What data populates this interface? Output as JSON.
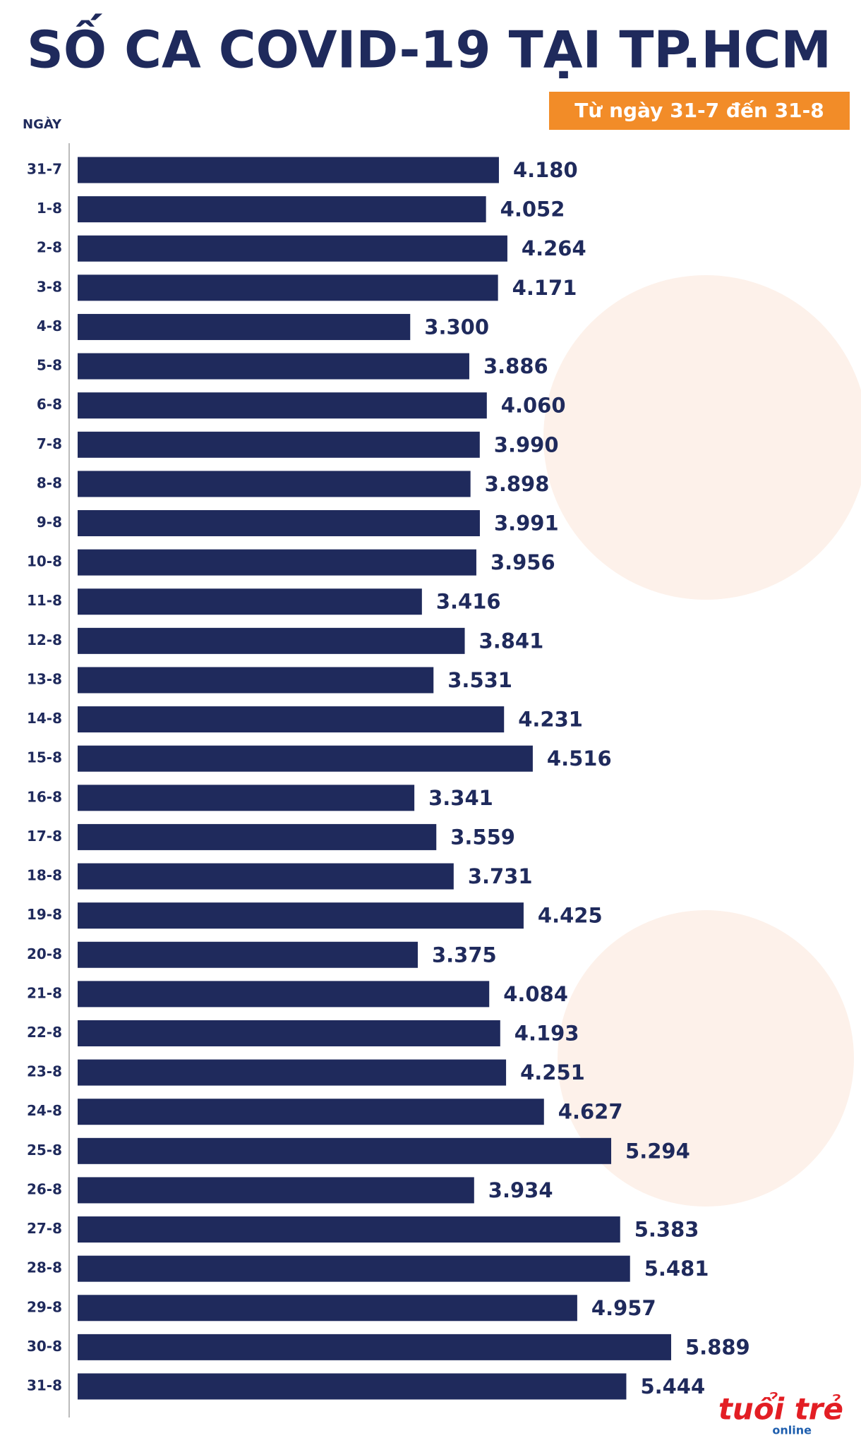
{
  "chart_data": {
    "type": "hbar",
    "title": "SỐ CA COVID-19 TẠI TP.HCM",
    "subtitle": "Từ ngày 31-7 đến 31-8",
    "y_label": "NGÀY",
    "categories": [
      "31-7",
      "1-8",
      "2-8",
      "3-8",
      "4-8",
      "5-8",
      "6-8",
      "7-8",
      "8-8",
      "9-8",
      "10-8",
      "11-8",
      "12-8",
      "13-8",
      "14-8",
      "15-8",
      "16-8",
      "17-8",
      "18-8",
      "19-8",
      "20-8",
      "21-8",
      "22-8",
      "23-8",
      "24-8",
      "25-8",
      "26-8",
      "27-8",
      "28-8",
      "29-8",
      "30-8",
      "31-8"
    ],
    "values": [
      4180,
      4052,
      4264,
      4171,
      3300,
      3886,
      4060,
      3990,
      3898,
      3991,
      3956,
      3416,
      3841,
      3531,
      4231,
      4516,
      3341,
      3559,
      3731,
      4425,
      3375,
      4084,
      4193,
      4251,
      4627,
      5294,
      3934,
      5383,
      5481,
      4957,
      5889,
      5444
    ],
    "value_labels": [
      "4.180",
      "4.052",
      "4.264",
      "4.171",
      "3.300",
      "3.886",
      "4.060",
      "3.990",
      "3.898",
      "3.991",
      "3.956",
      "3.416",
      "3.841",
      "3.531",
      "4.231",
      "4.516",
      "3.341",
      "3.559",
      "3.731",
      "4.425",
      "3.375",
      "4.084",
      "4.193",
      "4.251",
      "4.627",
      "5.294",
      "3.934",
      "5.383",
      "5.481",
      "4.957",
      "5.889",
      "5.444"
    ],
    "color": "#1f2a5c",
    "logo": "tuổi trẻ",
    "logo_sub": "online"
  }
}
